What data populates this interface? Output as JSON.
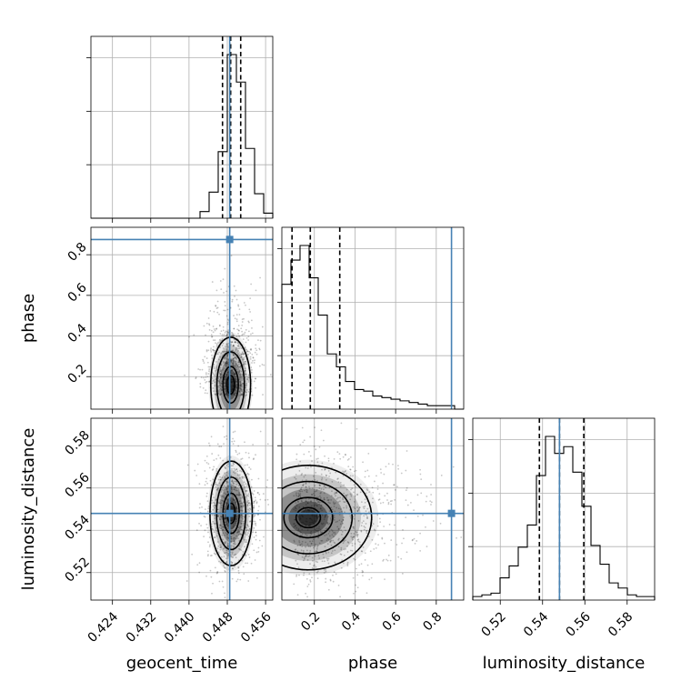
{
  "chart_data": {
    "type": "corner",
    "parameters": [
      "geocent_time",
      "phase",
      "luminosity_distance"
    ],
    "axis_labels": {
      "geocent_time": "geocent_time",
      "phase": "phase",
      "luminosity_distance": "luminosity_distance"
    },
    "ranges": {
      "geocent_time": [
        0.4195,
        0.4575
      ],
      "phase": [
        0.04,
        0.935
      ],
      "luminosity_distance": [
        0.507,
        0.593
      ]
    },
    "ticks": {
      "geocent_time": [
        "0.424",
        "0.432",
        "0.440",
        "0.448",
        "0.456"
      ],
      "phase": [
        "0.2",
        "0.4",
        "0.6",
        "0.8"
      ],
      "luminosity_distance": [
        "0.52",
        "0.54",
        "0.56",
        "0.58"
      ]
    },
    "truths": {
      "geocent_time": 0.4485,
      "phase": 0.875,
      "luminosity_distance": 0.548
    },
    "quantiles": {
      "geocent_time": [
        0.447,
        0.4487,
        0.4508
      ],
      "phase": [
        0.09,
        0.18,
        0.325
      ],
      "luminosity_distance": [
        0.5385,
        0.548,
        0.5595
      ]
    },
    "histograms": {
      "geocent_time": {
        "edges": [
          0.4195,
          0.4214,
          0.4233,
          0.4252,
          0.4271,
          0.429,
          0.4309,
          0.4328,
          0.4347,
          0.4366,
          0.4385,
          0.4404,
          0.4423,
          0.4442,
          0.4461,
          0.448,
          0.4499,
          0.4518,
          0.4537,
          0.4556,
          0.4575
        ],
        "counts": [
          0,
          0,
          0,
          0,
          0,
          0,
          0,
          0,
          0,
          0,
          0,
          0,
          3,
          15,
          40,
          100,
          83,
          42,
          14,
          2
        ]
      },
      "phase": {
        "edges": [
          0.04,
          0.08475,
          0.1295,
          0.17425,
          0.219,
          0.26375,
          0.3085,
          0.35325,
          0.398,
          0.44275,
          0.4875,
          0.53225,
          0.577,
          0.62175,
          0.6665,
          0.71125,
          0.756,
          0.80075,
          0.8455,
          0.89025,
          0.935
        ],
        "counts": [
          76,
          91,
          100,
          80,
          57,
          33,
          25,
          16,
          11,
          10,
          7,
          6,
          5,
          4,
          3,
          2,
          1,
          1,
          1,
          0
        ]
      },
      "luminosity_distance": {
        "edges": [
          0.507,
          0.5113,
          0.5156,
          0.5199,
          0.5242,
          0.5285,
          0.5328,
          0.5371,
          0.5414,
          0.5457,
          0.55,
          0.5543,
          0.5586,
          0.5629,
          0.5672,
          0.5715,
          0.5758,
          0.5801,
          0.5844,
          0.5887,
          0.593
        ],
        "counts": [
          1,
          2,
          3,
          12,
          19,
          30,
          43,
          72,
          95,
          85,
          89,
          74,
          54,
          31,
          20,
          9,
          6,
          2,
          1,
          1
        ]
      }
    },
    "panels_2d": [
      {
        "x": "geocent_time",
        "y": "phase",
        "center": [
          0.4487,
          0.16
        ],
        "spread": [
          0.0016,
          0.09
        ]
      },
      {
        "x": "geocent_time",
        "y": "luminosity_distance",
        "center": [
          0.4488,
          0.548
        ],
        "spread": [
          0.0017,
          0.0095
        ]
      },
      {
        "x": "phase",
        "y": "luminosity_distance",
        "center": [
          0.17,
          0.546
        ],
        "spread": [
          0.12,
          0.0095
        ]
      }
    ],
    "title": "",
    "grid": true
  }
}
